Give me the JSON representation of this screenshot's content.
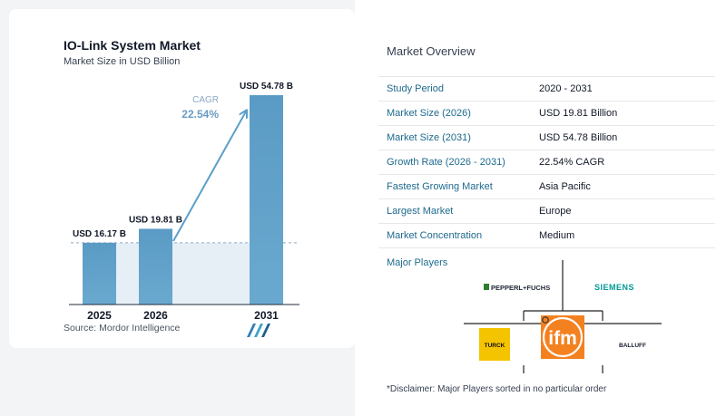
{
  "chart_data": {
    "type": "bar",
    "title": "IO-Link System Market",
    "subtitle": "Market Size in USD Billion",
    "categories": [
      "2025",
      "2026",
      "2031"
    ],
    "values": [
      16.17,
      19.81,
      54.78
    ],
    "data_labels": [
      "USD 16.17 B",
      "USD 19.81 B",
      "USD 54.78 B"
    ],
    "ylim": [
      0,
      60
    ],
    "grid": false,
    "annotation": {
      "label": "CAGR",
      "value": "22.54%"
    },
    "colors": {
      "bar_2025": "#5b9ec9",
      "bar_2026": "#5b9ec9",
      "bar_2031": "#5c9dc6",
      "arrow": "#5b9ec9",
      "shade": "#e6eff6",
      "cagr": "#6b9bc3"
    }
  },
  "source": "Source:  Mordor Intelligence",
  "overview": {
    "title": "Market Overview",
    "rows": [
      {
        "key": "Study Period",
        "value": "2020 - 2031"
      },
      {
        "key": "Market Size (2026)",
        "value": "USD 19.81 Billion"
      },
      {
        "key": "Market Size (2031)",
        "value": "USD 54.78 Billion"
      },
      {
        "key": "Growth Rate (2026 - 2031)",
        "value": "22.54% CAGR"
      },
      {
        "key": "Fastest Growing Market",
        "value": "Asia Pacific"
      },
      {
        "key": "Largest Market",
        "value": "Europe"
      },
      {
        "key": "Market Concentration",
        "value": "Medium"
      }
    ]
  },
  "players": {
    "title": "Major Players",
    "logos": [
      "PEPPERL+FUCHS",
      "SIEMENS",
      "TURCK",
      "ifm",
      "BALLUFF"
    ]
  },
  "disclaimer": "*Disclaimer: Major Players sorted in no particular order",
  "icons": {
    "brand": "mordor-intelligence-logo-icon"
  }
}
